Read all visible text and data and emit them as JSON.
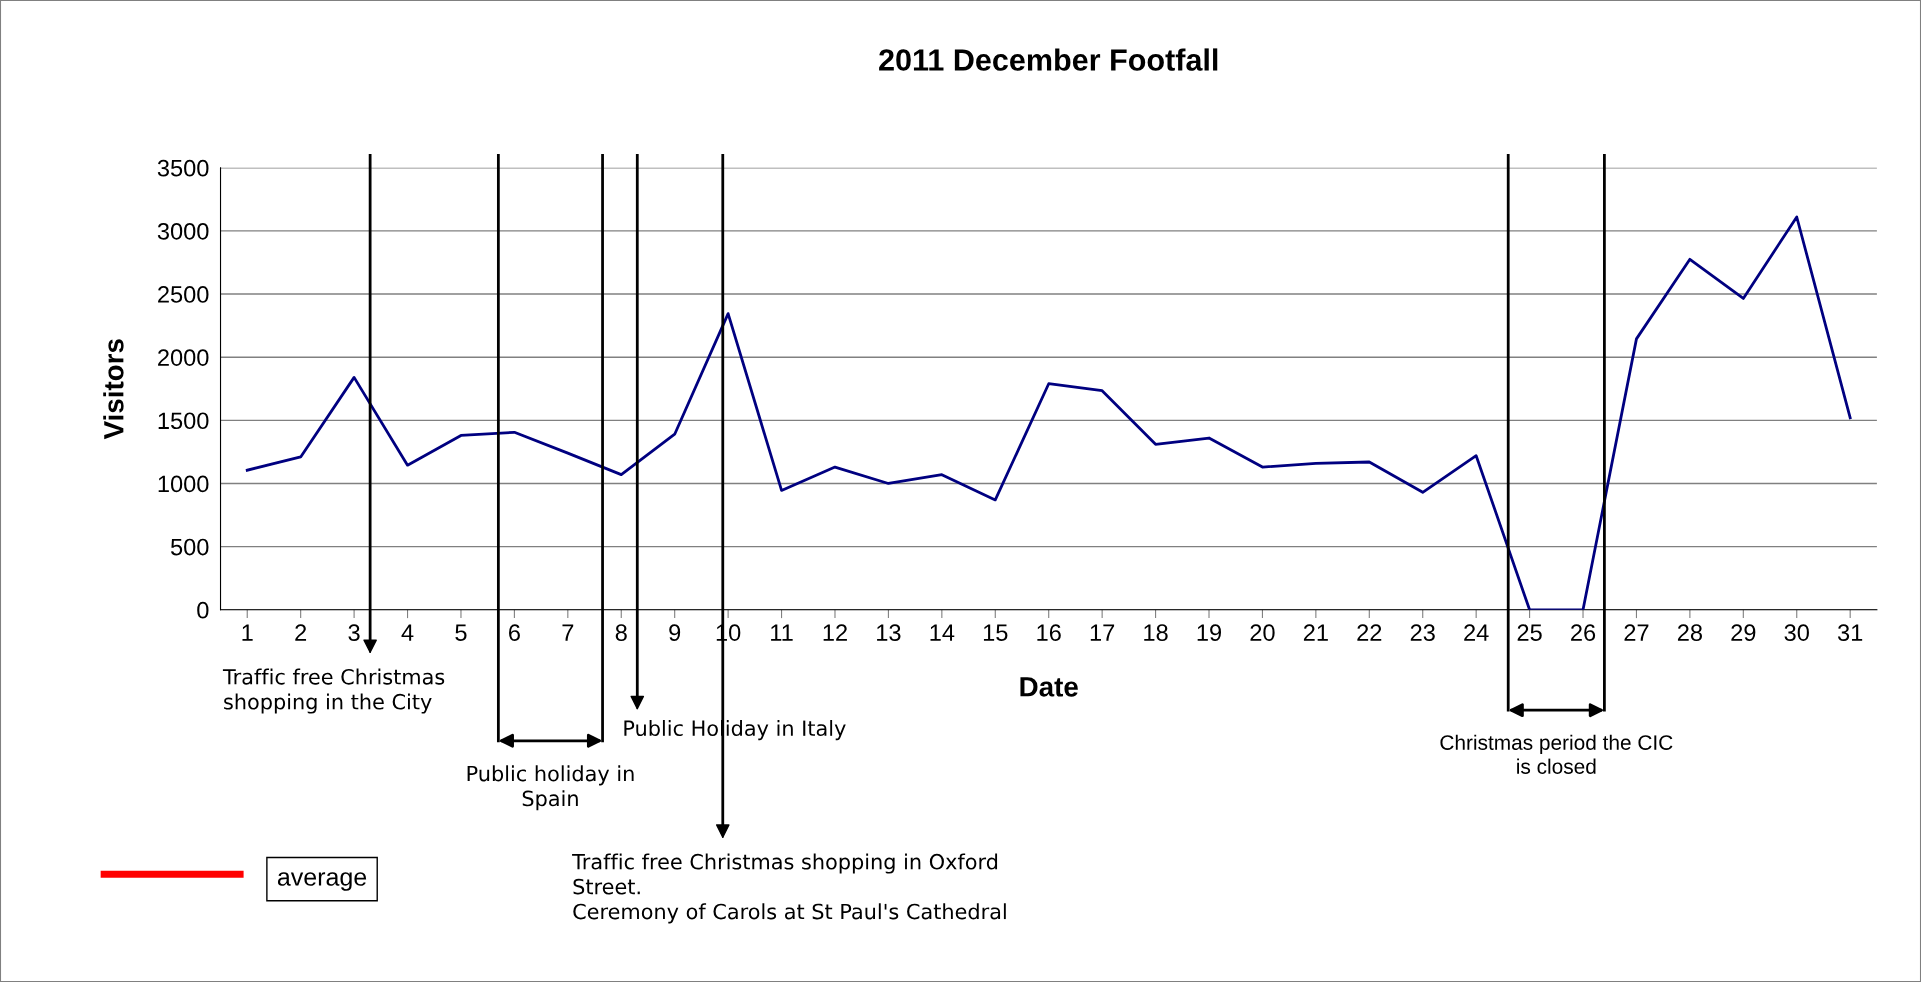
{
  "chart_data": {
    "type": "line",
    "title": "2011 December Footfall",
    "xlabel": "Date",
    "ylabel": "Visitors",
    "x": [
      1,
      2,
      3,
      4,
      5,
      6,
      7,
      8,
      9,
      10,
      11,
      12,
      13,
      14,
      15,
      16,
      17,
      18,
      19,
      20,
      21,
      22,
      23,
      24,
      25,
      26,
      27,
      28,
      29,
      30,
      31
    ],
    "series": [
      {
        "color": "#000080",
        "values": [
          1105,
          1210,
          1840,
          1145,
          1380,
          1405,
          1240,
          1070,
          1390,
          2345,
          945,
          1130,
          1000,
          1070,
          870,
          1790,
          1735,
          1310,
          1360,
          1130,
          1160,
          1170,
          930,
          1220,
          0,
          0,
          2145,
          2775,
          2465,
          3110,
          1520
        ]
      }
    ],
    "xlim": [
      0.5,
      31.5
    ],
    "xticks": [
      1,
      2,
      3,
      4,
      5,
      6,
      7,
      8,
      9,
      10,
      11,
      12,
      13,
      14,
      15,
      16,
      17,
      18,
      19,
      20,
      21,
      22,
      23,
      24,
      25,
      26,
      27,
      28,
      29,
      30,
      31
    ],
    "ylim": [
      0,
      3500
    ],
    "yticks": [
      0,
      500,
      1000,
      1500,
      2000,
      2500,
      3000,
      3500
    ],
    "grid": "y",
    "legend": "bottom left",
    "marker": "none",
    "line_style": "solid",
    "ref_lines": [
      {
        "axis": "x",
        "value": 3.3,
        "label": "Traffic free Christmas\nshopping in the City"
      },
      {
        "axis": "x",
        "value": 5.7,
        "label": "Public holiday in\nSpain"
      },
      {
        "axis": "x",
        "value": 7.65
      },
      {
        "axis": "x",
        "value": 8.3,
        "label": "Public Holiday in Italy"
      },
      {
        "axis": "x",
        "value": 9.9,
        "label": "Traffic free Christmas shopping in Oxford\nStreet.\nCeremony of Carols at St Paul's Cathedral"
      },
      {
        "axis": "x",
        "value": 24.6,
        "label": "Christmas period the CIC\nis closed"
      },
      {
        "axis": "x",
        "value": 26.4
      }
    ],
    "annotations": [
      "average"
    ]
  }
}
